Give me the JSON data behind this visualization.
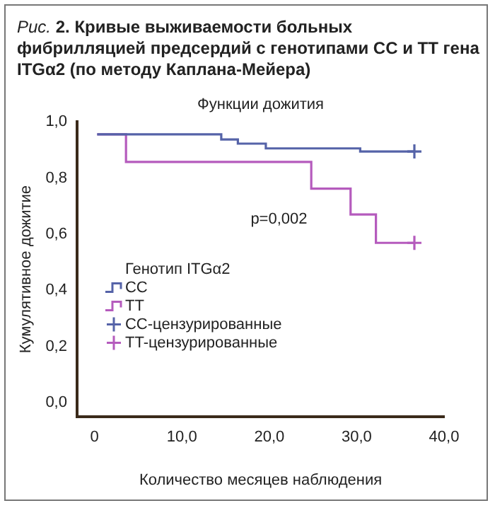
{
  "chart_data": {
    "type": "step",
    "title": "Рис. 2. Кривые выживаемости больных фибрилляцией предсердий с генотипами CC и TT гена ITGα2 (по методу Каплана-Мейера)",
    "subtitle": "Функции дожития",
    "xlabel": "Количество месяцев наблюдения",
    "ylabel": "Кумулятивное дожитие",
    "legend_title": "Генотип ITGα2",
    "legend": "left",
    "grid": false,
    "xlim": [
      -2,
      40
    ],
    "xticks": [
      0,
      {
        "value": 10,
        "label": "10,0"
      },
      {
        "value": 20,
        "label": "20,0"
      },
      {
        "value": 30,
        "label": "30,0"
      },
      {
        "value": 40,
        "label": "40,0"
      }
    ],
    "ylim": [
      -0.05,
      1
    ],
    "yticks": [
      {
        "value": 0,
        "label": "0,0"
      },
      {
        "value": 0.2,
        "label": "0,2"
      },
      {
        "value": 0.4,
        "label": "0,4"
      },
      {
        "value": 0.6,
        "label": "0,6"
      },
      {
        "value": 0.8,
        "label": "0,8"
      },
      {
        "value": 1,
        "label": "1,0"
      }
    ],
    "annotations": [
      "p=0,002"
    ],
    "series": [
      {
        "name": "CC",
        "color": "#5563a8",
        "marker": "none",
        "x": [
          0.3,
          14.5,
          16.4,
          19.6,
          30.4,
          36.6
        ],
        "values": [
          0.955,
          0.937,
          0.922,
          0.905,
          0.894,
          0.894
        ]
      },
      {
        "name": "TT",
        "color": "#b55bbd",
        "marker": "none",
        "x": [
          0.3,
          3.6,
          24.8,
          29.3,
          32.2,
          36.6
        ],
        "values": [
          0.955,
          0.857,
          0.762,
          0.67,
          0.569,
          0.569
        ]
      },
      {
        "name": "CC-цензурированные",
        "type": "scatter",
        "color": "#5563a8",
        "marker": "cross",
        "x": [
          36.6
        ],
        "values": [
          0.894
        ]
      },
      {
        "name": "TT-цензурированные",
        "type": "scatter",
        "color": "#b55bbd",
        "marker": "cross",
        "x": [
          36.6
        ],
        "values": [
          0.569
        ]
      }
    ]
  }
}
